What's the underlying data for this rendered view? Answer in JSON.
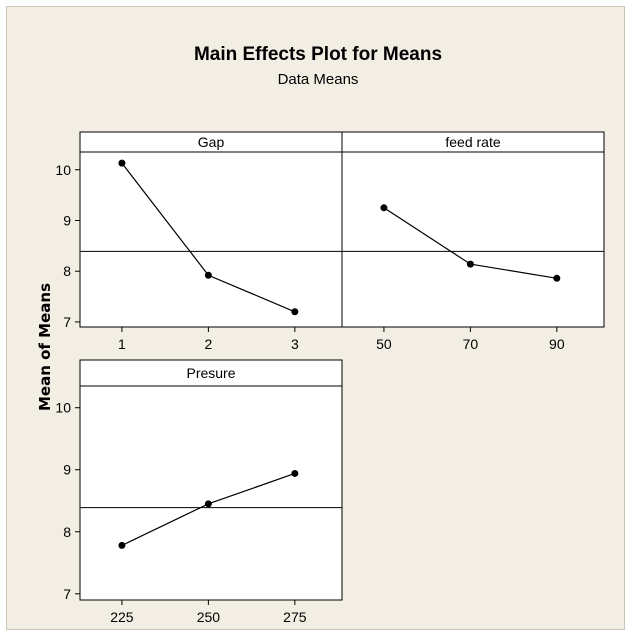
{
  "chart_data": {
    "type": "line",
    "title": "Main Effects Plot for Means",
    "subtitle": "Data Means",
    "ylabel": "Mean of Means",
    "ylim": [
      6.9,
      10.35
    ],
    "yticks": [
      7,
      8,
      9,
      10
    ],
    "reference_mean": 8.39,
    "panels": [
      {
        "label": "Gap",
        "categories": [
          "1",
          "2",
          "3"
        ],
        "values": [
          10.13,
          7.92,
          7.2
        ]
      },
      {
        "label": "feed rate",
        "categories": [
          "50",
          "70",
          "90"
        ],
        "values": [
          9.25,
          8.14,
          7.86
        ]
      },
      {
        "label": "Presure",
        "categories": [
          "225",
          "250",
          "275"
        ],
        "values": [
          7.78,
          8.45,
          8.94
        ]
      }
    ]
  }
}
